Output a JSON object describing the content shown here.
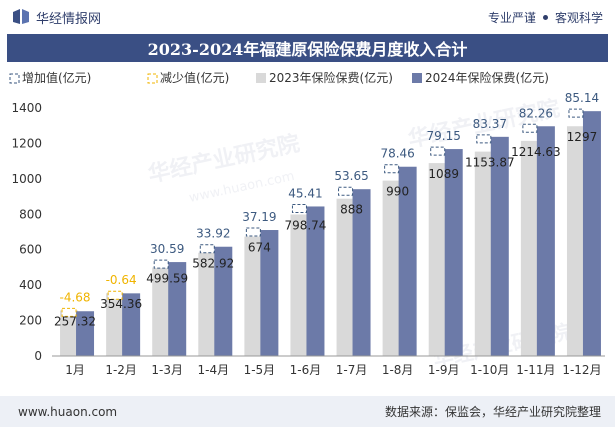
{
  "header": {
    "brand": "华经情报网",
    "tagline_left": "专业严谨",
    "tagline_right": "客观科学"
  },
  "footer": {
    "website": "www.huaon.com",
    "source": "数据来源：保监会，华经产业研究院整理"
  },
  "watermark": "华经产业研究院",
  "watermark_url": "www.huaon.com",
  "colors": {
    "title_bg": "#3a4f84",
    "series_2023": "#d9d9d9",
    "series_2024": "#6c7aa8",
    "increase_label": "#3d5a80",
    "decrease_label": "#f0b400"
  },
  "chart_data": {
    "type": "bar",
    "title": "2023-2024年福建原保险保费月度收入合计",
    "categories": [
      "1月",
      "1-2月",
      "1-3月",
      "1-4月",
      "1-5月",
      "1-6月",
      "1-7月",
      "1-8月",
      "1-9月",
      "1-10月",
      "1-11月",
      "1-12月"
    ],
    "legend": [
      "增加值(亿元)",
      "减少值(亿元)",
      "2023年保险保费(亿元)",
      "2024年保险保费(亿元)"
    ],
    "series": [
      {
        "name": "2023年保险保费(亿元)",
        "values": [
          257.32,
          354.36,
          499.59,
          582.92,
          674,
          798.74,
          888,
          990,
          1089,
          1153.87,
          1214.63,
          1297
        ]
      },
      {
        "name": "2024年保险保费(亿元)",
        "values": [
          252.64,
          353.72,
          530.18,
          616.84,
          711.19,
          844.15,
          941.65,
          1068.46,
          1168.15,
          1237.24,
          1296.89,
          1382.14
        ]
      }
    ],
    "change_values": [
      -4.68,
      -0.64,
      30.59,
      33.92,
      37.19,
      45.41,
      53.65,
      78.46,
      79.15,
      83.37,
      82.26,
      85.14
    ],
    "change_labels": [
      "-4.68",
      "-0.64",
      "30.59",
      "33.92",
      "37.19",
      "45.41",
      "53.65",
      "78.46",
      "79.15",
      "83.37",
      "82.26",
      "85.14"
    ],
    "value_labels": [
      "257.32",
      "354.36",
      "499.59",
      "582.92",
      "674",
      "798.74",
      "888",
      "990",
      "1089",
      "1153.87",
      "1214.63",
      "1297"
    ],
    "ylim": [
      0,
      1400
    ],
    "yticks": [
      "0",
      "200",
      "400",
      "600",
      "800",
      "1000",
      "1200",
      "1400"
    ],
    "legend_position": "top-left",
    "grid": false
  }
}
